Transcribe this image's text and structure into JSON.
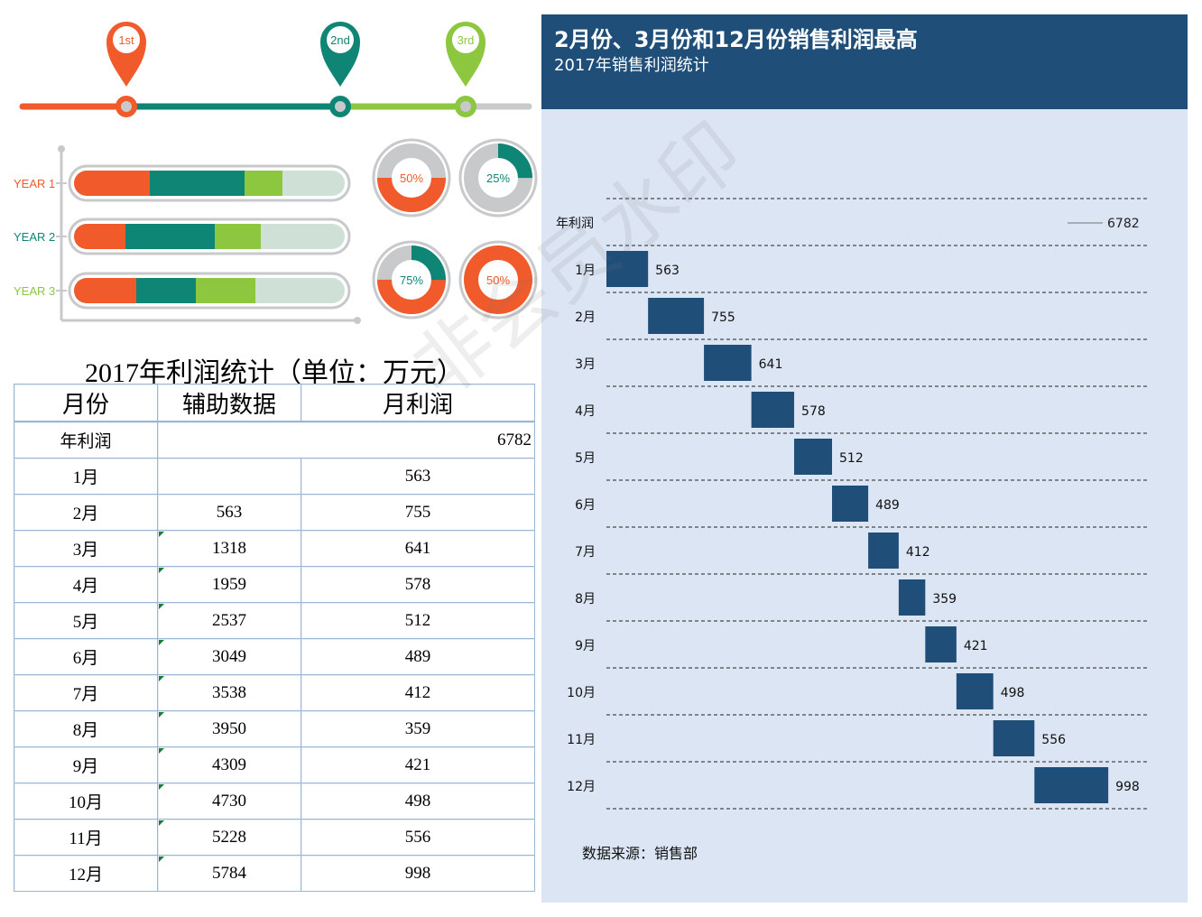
{
  "infographic": {
    "pins": [
      {
        "label": "1st",
        "color": "#f15a2b"
      },
      {
        "label": "2nd",
        "color": "#0f8576"
      },
      {
        "label": "3rd",
        "color": "#8dc63f"
      }
    ],
    "colors": {
      "orange": "#f15a2b",
      "teal": "#0f8576",
      "green": "#8dc63f",
      "track": "#cfe0d6",
      "grey": "#c8c9ca"
    },
    "years": [
      {
        "label": "YEAR 1",
        "color": "#f15a2b",
        "segments": [
          0.28,
          0.35,
          0.14
        ]
      },
      {
        "label": "YEAR 2",
        "color": "#0f8576",
        "segments": [
          0.19,
          0.33,
          0.17
        ]
      },
      {
        "label": "YEAR 3",
        "color": "#8dc63f",
        "segments": [
          0.23,
          0.22,
          0.22
        ]
      }
    ],
    "donuts": [
      {
        "label": "50%",
        "value": 0.5,
        "fill": "#f15a2b",
        "label_color": "#f15a2b"
      },
      {
        "label": "25%",
        "value": 0.25,
        "fill": "#0f8576",
        "label_color": "#0f8576"
      },
      {
        "label": "75%",
        "value": 0.75,
        "fill": "#f15a2b",
        "fill2": "#0f8576",
        "label_color": "#0f8576"
      },
      {
        "label": "50%",
        "value": 0.5,
        "fill": "#f15a2b",
        "label_color": "#f15a2b",
        "solid": true
      }
    ]
  },
  "table": {
    "title": "2017年利润统计（单位：万元）",
    "headers": [
      "月份",
      "辅助数据",
      "月利润"
    ],
    "total_label": "年利润",
    "total_value": "6782",
    "rows": [
      {
        "month": "1月",
        "aux": "",
        "profit": "563"
      },
      {
        "month": "2月",
        "aux": "563",
        "profit": "755"
      },
      {
        "month": "3月",
        "aux": "1318",
        "profit": "641"
      },
      {
        "month": "4月",
        "aux": "1959",
        "profit": "578"
      },
      {
        "month": "5月",
        "aux": "2537",
        "profit": "512"
      },
      {
        "month": "6月",
        "aux": "3049",
        "profit": "489"
      },
      {
        "month": "7月",
        "aux": "3538",
        "profit": "412"
      },
      {
        "month": "8月",
        "aux": "3950",
        "profit": "359"
      },
      {
        "month": "9月",
        "aux": "4309",
        "profit": "421"
      },
      {
        "month": "10月",
        "aux": "4730",
        "profit": "498"
      },
      {
        "month": "11月",
        "aux": "5228",
        "profit": "556"
      },
      {
        "month": "12月",
        "aux": "5784",
        "profit": "998"
      }
    ]
  },
  "chart": {
    "title": "2月份、3月份和12月份销售利润最高",
    "subtitle": "2017年销售利润统计",
    "source": "数据来源：销售部",
    "header_color": "#1f4e79",
    "bg_color": "#dbe5f3",
    "bar_color": "#1f4e79"
  },
  "chart_data": {
    "type": "bar",
    "orientation": "horizontal",
    "stacked_waterfall": true,
    "categories": [
      "年利润",
      "1月",
      "2月",
      "3月",
      "4月",
      "5月",
      "6月",
      "7月",
      "8月",
      "9月",
      "10月",
      "11月",
      "12月"
    ],
    "offsets": [
      0,
      0,
      563,
      1318,
      1959,
      2537,
      3049,
      3538,
      3950,
      4309,
      4730,
      5228,
      5784
    ],
    "values": [
      6782,
      563,
      755,
      641,
      578,
      512,
      489,
      412,
      359,
      421,
      498,
      556,
      998
    ],
    "xlim": [
      0,
      6782
    ],
    "title": "2月份、3月份和12月份销售利润最高",
    "subtitle": "2017年销售利润统计",
    "grid": true
  },
  "watermark": "非会员水印"
}
